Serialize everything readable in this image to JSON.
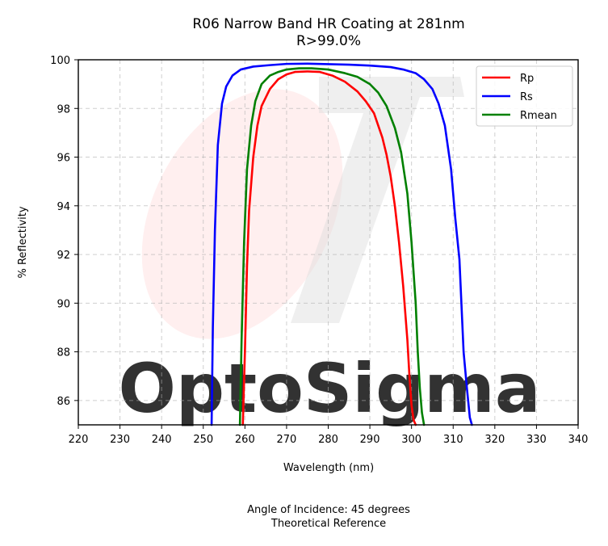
{
  "chart_data": {
    "type": "line",
    "title": "R06 Narrow Band HR Coating at 281nm",
    "subtitle": "R>99.0%",
    "xlabel": "Wavelength (nm)",
    "ylabel": "% Reflectivity",
    "xlim": [
      220,
      340
    ],
    "ylim": [
      85,
      100
    ],
    "xticks": [
      "220",
      "230",
      "240",
      "250",
      "260",
      "270",
      "280",
      "290",
      "300",
      "310",
      "320",
      "330",
      "340"
    ],
    "yticks": [
      "86",
      "88",
      "90",
      "92",
      "94",
      "96",
      "98",
      "100"
    ],
    "grid": true,
    "legend_position": "top-right",
    "footer_line1": "Angle of Incidence: 45 degrees",
    "footer_line2": "Theoretical Reference",
    "watermark": "OptoSigma",
    "series": [
      {
        "name": "Rp",
        "color": "#ff0000",
        "x": [
          259.5,
          260.0,
          260.5,
          261.0,
          262.0,
          263.0,
          264.0,
          266.0,
          268.0,
          270.0,
          272.0,
          275.0,
          278.0,
          281.0,
          284.0,
          287.0,
          289.0,
          291.0,
          293.0,
          294.0,
          295.0,
          296.0,
          297.0,
          298.0,
          299.0,
          299.5,
          300.0,
          300.5,
          301.0
        ],
        "y": [
          85.0,
          88.0,
          91.5,
          93.8,
          96.0,
          97.3,
          98.1,
          98.8,
          99.2,
          99.4,
          99.5,
          99.52,
          99.5,
          99.35,
          99.1,
          98.7,
          98.3,
          97.8,
          96.8,
          96.1,
          95.2,
          94.0,
          92.5,
          90.7,
          88.5,
          87.0,
          85.8,
          85.2,
          85.0
        ]
      },
      {
        "name": "Rs",
        "color": "#0000ff",
        "x": [
          252.0,
          252.3,
          252.8,
          253.5,
          254.5,
          255.5,
          257.0,
          259.0,
          262.0,
          266.0,
          270.0,
          275.0,
          280.0,
          285.0,
          290.0,
          295.0,
          298.0,
          301.0,
          303.0,
          305.0,
          306.5,
          308.0,
          309.5,
          310.5,
          311.5,
          312.5,
          313.3,
          314.0,
          314.5
        ],
        "y": [
          85.0,
          89.0,
          93.0,
          96.5,
          98.2,
          98.9,
          99.35,
          99.6,
          99.72,
          99.78,
          99.83,
          99.84,
          99.82,
          99.8,
          99.76,
          99.7,
          99.6,
          99.45,
          99.2,
          98.8,
          98.2,
          97.3,
          95.5,
          93.5,
          91.8,
          88.0,
          86.5,
          85.3,
          85.0
        ]
      },
      {
        "name": "Rmean",
        "color": "#008000",
        "x": [
          258.8,
          259.2,
          259.8,
          260.5,
          261.5,
          262.5,
          264.0,
          266.0,
          268.0,
          270.0,
          273.0,
          276.0,
          280.0,
          284.0,
          287.0,
          290.0,
          292.0,
          294.0,
          296.0,
          297.5,
          299.0,
          300.0,
          301.0,
          301.5,
          302.0,
          302.5,
          303.0
        ],
        "y": [
          85.0,
          88.5,
          92.5,
          95.5,
          97.3,
          98.3,
          99.0,
          99.35,
          99.5,
          99.6,
          99.65,
          99.65,
          99.6,
          99.45,
          99.3,
          99.0,
          98.65,
          98.1,
          97.2,
          96.2,
          94.5,
          92.5,
          90.0,
          88.0,
          86.5,
          85.5,
          85.0
        ]
      }
    ]
  }
}
